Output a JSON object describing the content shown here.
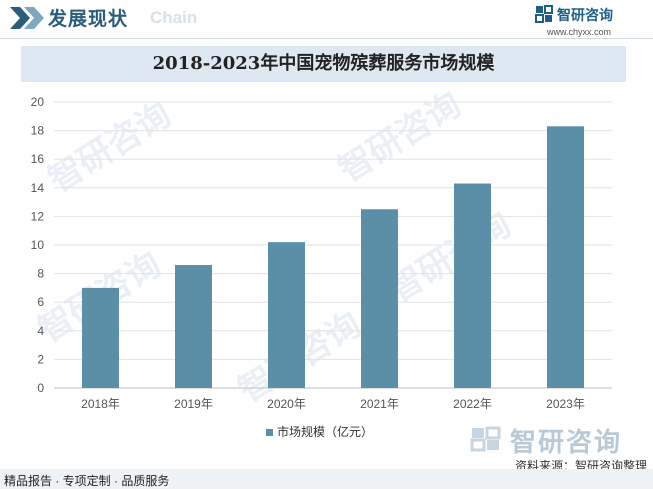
{
  "header": {
    "section_title": "发展现状",
    "section_subtitle": "Chain",
    "brand_name": "智研咨询",
    "brand_url": "www.chyxx.com"
  },
  "colors": {
    "bar": "#5b8fa8",
    "title_band": "#dde8f2",
    "accent": "#2a5d7b"
  },
  "chart_data": {
    "type": "bar",
    "title": "2018-2023年中国宠物殡葬服务市场规模",
    "categories": [
      "2018年",
      "2019年",
      "2020年",
      "2021年",
      "2022年",
      "2023年"
    ],
    "series": [
      {
        "name": "市场规模（亿元）",
        "values": [
          7.0,
          8.6,
          10.2,
          12.5,
          14.3,
          18.3
        ]
      }
    ],
    "ylim": [
      0,
      20
    ],
    "yticks": [
      0,
      2,
      4,
      6,
      8,
      10,
      12,
      14,
      16,
      18,
      20
    ],
    "grid": true,
    "legend": "bottom-center",
    "xlabel": "",
    "ylabel": ""
  },
  "watermark": "智研咨询",
  "source": "资料来源：智研咨询整理",
  "footer": "精品报告 · 专项定制 · 品质服务"
}
